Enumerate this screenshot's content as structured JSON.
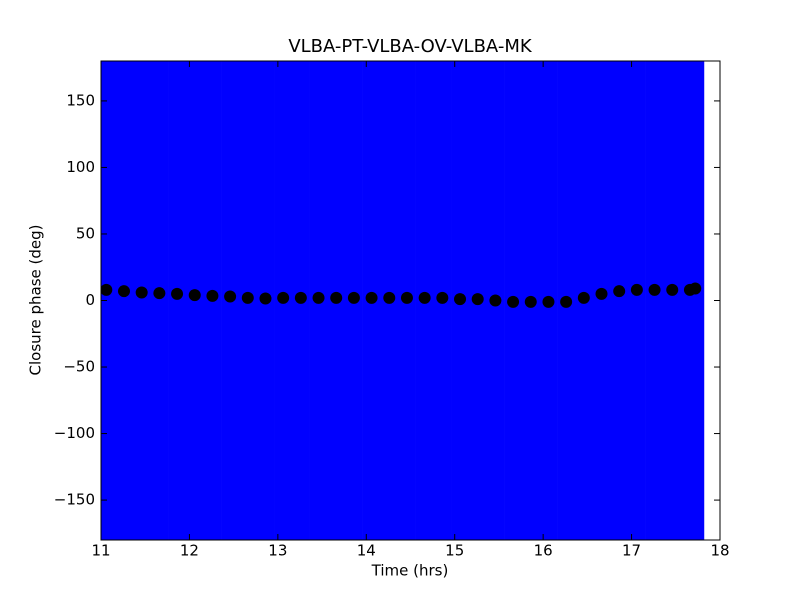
{
  "chart_data": {
    "type": "errorbar",
    "title": "VLBA-PT-VLBA-OV-VLBA-MK",
    "x_label": "Time (hrs)",
    "y_label": "Closure phase (deg)",
    "xlim": [
      11,
      18
    ],
    "xticks": [
      11,
      12,
      13,
      14,
      15,
      16,
      17,
      18
    ],
    "ylim": [
      -180,
      180
    ],
    "yticks": [
      {
        "value": -150,
        "label": "−150"
      },
      {
        "value": -100,
        "label": "−100"
      },
      {
        "value": -50,
        "label": "−50"
      },
      0,
      50,
      100,
      150
    ],
    "marker_color": "#000000",
    "error_color": "#0000ff",
    "x": [
      11.06,
      11.26,
      11.46,
      11.66,
      11.86,
      12.06,
      12.26,
      12.46,
      12.66,
      12.86,
      13.06,
      13.26,
      13.46,
      13.66,
      13.86,
      14.06,
      14.26,
      14.46,
      14.66,
      14.86,
      15.06,
      15.26,
      15.46,
      15.66,
      15.86,
      16.06,
      16.26,
      16.46,
      16.66,
      16.86,
      17.06,
      17.26,
      17.46,
      17.66,
      17.72
    ],
    "values": [
      8,
      7,
      6,
      5.5,
      5,
      4,
      3.5,
      3,
      2,
      1.5,
      2,
      2,
      2,
      2,
      2,
      2,
      2,
      2,
      2,
      2,
      1,
      1,
      0,
      -1,
      -1,
      -1,
      -1,
      2,
      5,
      7,
      8,
      8,
      8,
      8,
      9
    ],
    "yerr": [
      190,
      190,
      190,
      190,
      190,
      190,
      190,
      190,
      190,
      190,
      190,
      190,
      190,
      190,
      190,
      190,
      190,
      190,
      190,
      190,
      190,
      190,
      190,
      190,
      190,
      190,
      190,
      190,
      190,
      190,
      190,
      190,
      190,
      190,
      190
    ]
  }
}
